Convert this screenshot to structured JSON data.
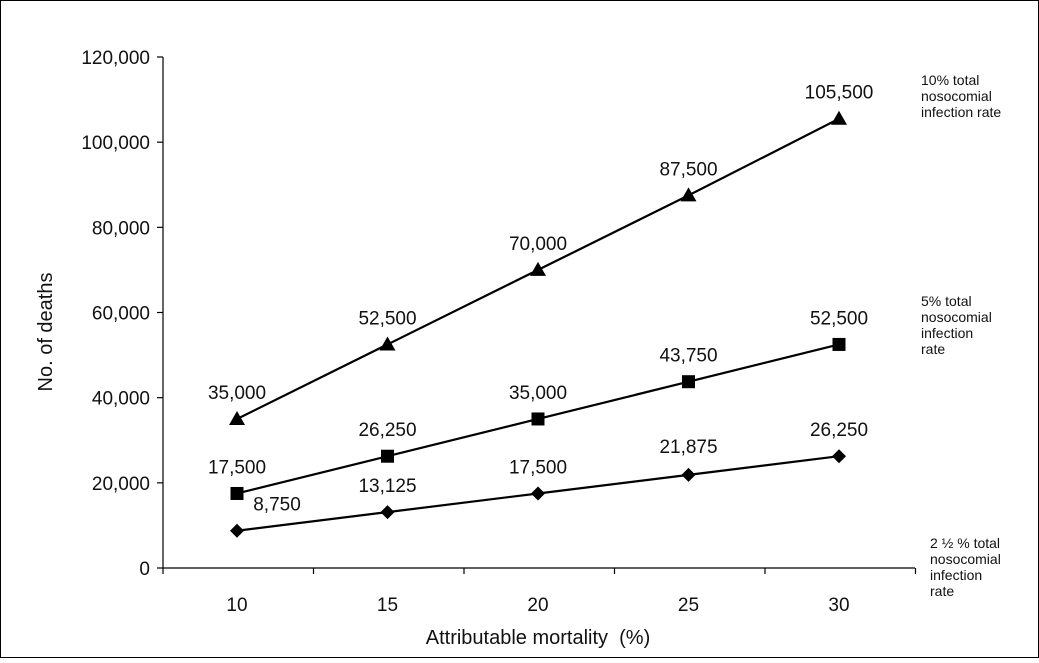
{
  "chart_data": {
    "type": "line",
    "xlabel": "Attributable mortality  (%)",
    "ylabel": "No. of deaths",
    "categories": [
      "10",
      "15",
      "20",
      "25",
      "30"
    ],
    "x": [
      10,
      15,
      20,
      25,
      30
    ],
    "ylim": [
      0,
      120000
    ],
    "yticks": [
      0,
      20000,
      40000,
      60000,
      80000,
      100000,
      120000
    ],
    "ytick_labels": [
      "0",
      "20,000",
      "40,000",
      "60,000",
      "80,000",
      "100,000",
      "120,000"
    ],
    "grid": false,
    "series": [
      {
        "name": "10% total nosocomial infection rate",
        "name_lines": [
          "10% total",
          "nosocomial",
          "infection rate"
        ],
        "marker": "triangle",
        "values": [
          35000,
          52500,
          70000,
          87500,
          105500
        ],
        "labels": [
          "35,000",
          "52,500",
          "70,000",
          "87,500",
          "105,500"
        ]
      },
      {
        "name": "5% total nosocomial infection rate",
        "name_lines": [
          "5% total",
          "nosocomial",
          "infection",
          "rate"
        ],
        "marker": "square",
        "values": [
          17500,
          26250,
          35000,
          43750,
          52500
        ],
        "labels": [
          "17,500",
          "26,250",
          "35,000",
          "43,750",
          "52,500"
        ]
      },
      {
        "name": "2 ½ % total nosocomial infection rate",
        "name_lines": [
          "2 ½ % total",
          "nosocomial",
          "infection",
          "rate"
        ],
        "marker": "diamond",
        "values": [
          8750,
          13125,
          17500,
          21875,
          26250
        ],
        "labels": [
          "8,750",
          "13,125",
          "17,500",
          "21,875",
          "26,250"
        ]
      }
    ],
    "colors": {
      "line": "#000000",
      "marker": "#000000",
      "text": "#111111"
    }
  }
}
